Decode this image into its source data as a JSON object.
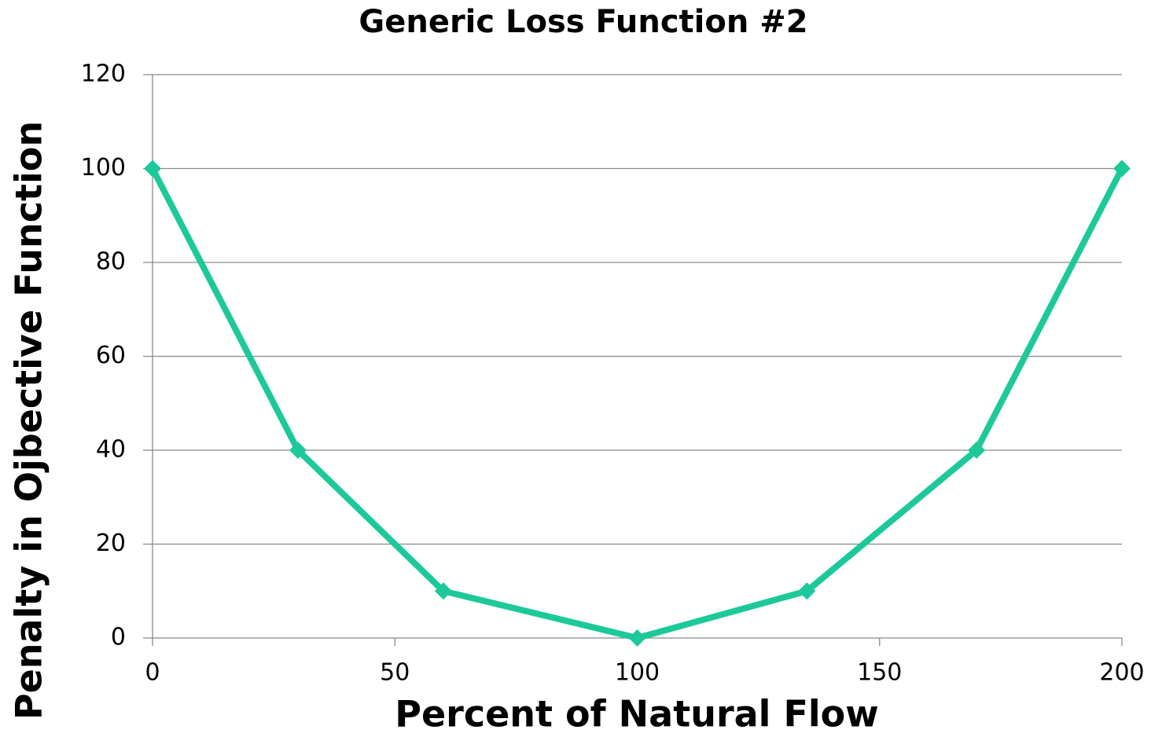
{
  "chart_data": {
    "type": "line",
    "title": "Generic Loss Function #2",
    "x_label": "Percent of Natural Flow",
    "y_label": "Penalty in Ojbective Function",
    "x": [
      0,
      30,
      60,
      100,
      135,
      170,
      200
    ],
    "series": [
      {
        "name": "Penalty",
        "color": "#1dc99a",
        "values": [
          100,
          40,
          10,
          0,
          10,
          40,
          100
        ]
      }
    ],
    "xlim": [
      0,
      200
    ],
    "xticks": [
      0,
      50,
      100,
      150,
      200
    ],
    "ylim": [
      0,
      120
    ],
    "yticks": [
      0,
      20,
      40,
      60,
      80,
      100,
      120
    ],
    "grid": true
  }
}
